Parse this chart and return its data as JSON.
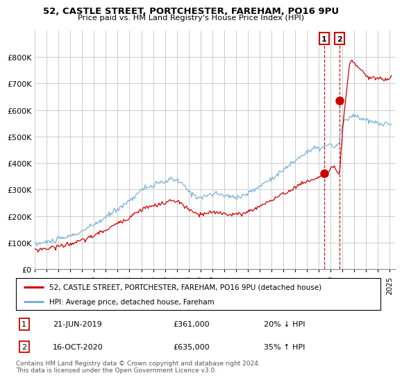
{
  "title": "52, CASTLE STREET, PORTCHESTER, FAREHAM, PO16 9PU",
  "subtitle": "Price paid vs. HM Land Registry's House Price Index (HPI)",
  "legend_line1": "52, CASTLE STREET, PORTCHESTER, FAREHAM, PO16 9PU (detached house)",
  "legend_line2": "HPI: Average price, detached house, Fareham",
  "footnote": "Contains HM Land Registry data © Crown copyright and database right 2024.\nThis data is licensed under the Open Government Licence v3.0.",
  "transaction1_date": "21-JUN-2019",
  "transaction1_price": "£361,000",
  "transaction1_hpi": "20% ↓ HPI",
  "transaction1_year": 2019.47,
  "transaction2_date": "16-OCT-2020",
  "transaction2_price": "£635,000",
  "transaction2_hpi": "35% ↑ HPI",
  "transaction2_year": 2020.79,
  "hpi_color": "#7bafd4",
  "price_color": "#cc0000",
  "vline_color": "#cc0000",
  "dot1_y": 361000,
  "dot2_y": 635000,
  "marker1_label": "1",
  "marker2_label": "2",
  "background_color": "#ffffff",
  "grid_color": "#cccccc",
  "ylim": [
    0,
    900000
  ],
  "ytick_labels": [
    "£0",
    "£100K",
    "£200K",
    "£300K",
    "£400K",
    "£500K",
    "£600K",
    "£700K",
    "£800K"
  ],
  "xlim_start": 1995.0,
  "xlim_end": 2025.5,
  "xtick_years": [
    1995,
    1996,
    1997,
    1998,
    1999,
    2000,
    2001,
    2002,
    2003,
    2004,
    2005,
    2006,
    2007,
    2008,
    2009,
    2010,
    2011,
    2012,
    2013,
    2014,
    2015,
    2016,
    2017,
    2018,
    2019,
    2020,
    2021,
    2022,
    2023,
    2024,
    2025
  ]
}
